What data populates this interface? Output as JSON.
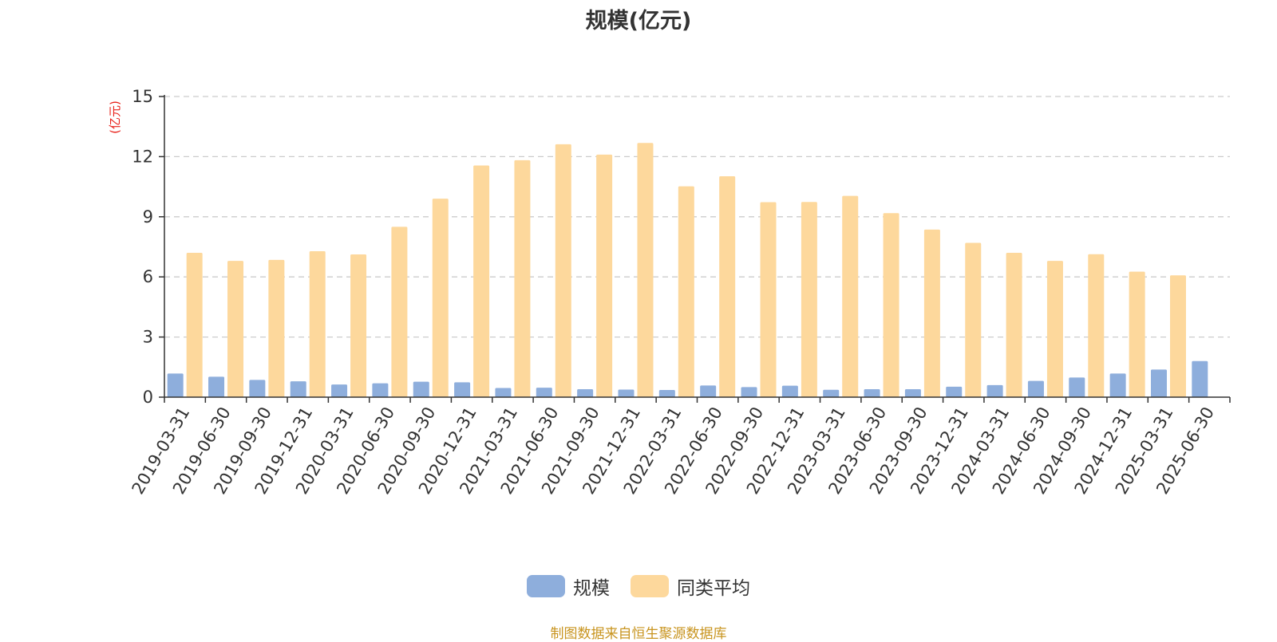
{
  "chart_data": {
    "type": "bar",
    "title": "规模(亿元)",
    "ylabel": "(亿元)",
    "xlabel": "",
    "ylim": [
      0,
      15
    ],
    "yticks": [
      0,
      3,
      6,
      9,
      12,
      15
    ],
    "grid": true,
    "legend_position": "bottom-center",
    "categories": [
      "2019-03-31",
      "2019-06-30",
      "2019-09-30",
      "2019-12-31",
      "2020-03-31",
      "2020-06-30",
      "2020-09-30",
      "2020-12-31",
      "2021-03-31",
      "2021-06-30",
      "2021-09-30",
      "2021-12-31",
      "2022-03-31",
      "2022-06-30",
      "2022-09-30",
      "2022-12-31",
      "2023-03-31",
      "2023-06-30",
      "2023-09-30",
      "2023-12-31",
      "2024-03-31",
      "2024-06-30",
      "2024-09-30",
      "2024-12-31",
      "2025-03-31",
      "2025-06-30"
    ],
    "series": [
      {
        "name": "规模",
        "color": "#8eaedc",
        "values": [
          1.18,
          1.02,
          0.86,
          0.79,
          0.63,
          0.69,
          0.77,
          0.74,
          0.46,
          0.47,
          0.4,
          0.38,
          0.36,
          0.58,
          0.5,
          0.57,
          0.37,
          0.4,
          0.4,
          0.52,
          0.6,
          0.81,
          0.98,
          1.18,
          1.38,
          1.8
        ]
      },
      {
        "name": "同类平均",
        "color": "#fdd89c",
        "values": [
          7.2,
          6.8,
          6.85,
          7.28,
          7.12,
          8.5,
          9.9,
          11.56,
          11.82,
          12.62,
          12.1,
          12.68,
          10.52,
          11.02,
          9.73,
          9.74,
          10.04,
          9.18,
          8.36,
          7.7,
          7.2,
          6.8,
          7.13,
          6.26,
          6.08,
          null
        ]
      }
    ]
  },
  "source_note": "制图数据来自恒生聚源数据库"
}
